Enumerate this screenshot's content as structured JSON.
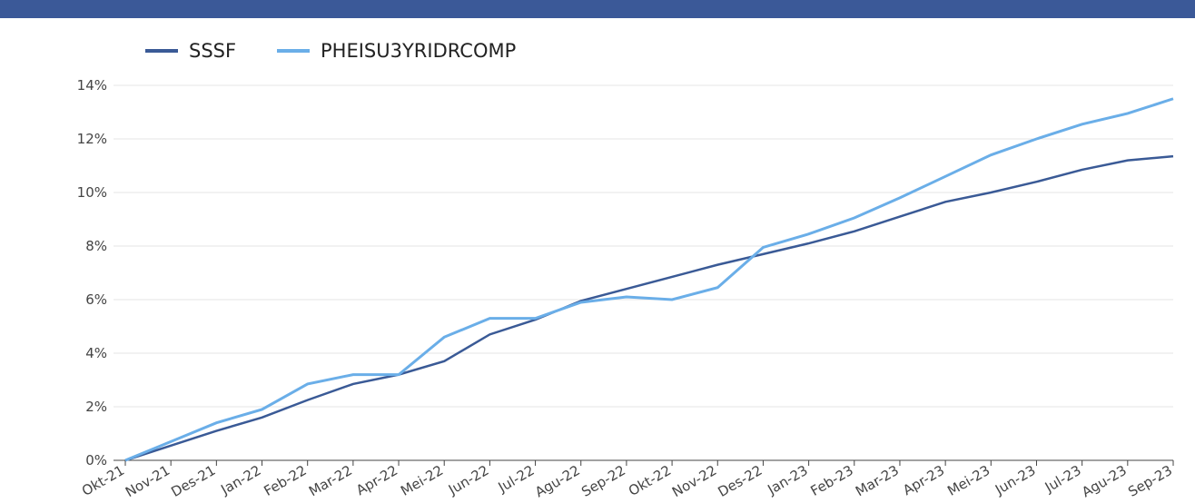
{
  "chart_data": {
    "type": "line",
    "categories": [
      "Okt-21",
      "Nov-21",
      "Des-21",
      "Jan-22",
      "Feb-22",
      "Mar-22",
      "Apr-22",
      "Mei-22",
      "Jun-22",
      "Jul-22",
      "Agu-22",
      "Sep-22",
      "Okt-22",
      "Nov-22",
      "Des-22",
      "Jan-23",
      "Feb-23",
      "Mar-23",
      "Apr-23",
      "Mei-23",
      "Jun-23",
      "Jul-23",
      "Agu-23",
      "Sep-23"
    ],
    "series": [
      {
        "name": "SSSF",
        "color": "#3a5a96",
        "values": [
          0,
          0.55,
          1.1,
          1.6,
          2.25,
          2.85,
          3.2,
          3.7,
          4.7,
          5.25,
          5.95,
          6.4,
          6.85,
          7.3,
          7.7,
          8.1,
          8.55,
          9.1,
          9.65,
          10.0,
          10.4,
          10.85,
          11.2,
          11.35
        ]
      },
      {
        "name": "PHEISU3YRIDRCOMP",
        "color": "#6aaee8",
        "values": [
          0,
          0.7,
          1.4,
          1.9,
          2.85,
          3.2,
          3.2,
          4.6,
          5.3,
          5.3,
          5.9,
          6.1,
          6.0,
          6.45,
          7.95,
          8.45,
          9.05,
          9.8,
          10.6,
          11.4,
          12.0,
          12.55,
          12.95,
          13.5
        ]
      }
    ],
    "ylim": [
      0,
      14
    ],
    "yticks": [
      {
        "value": 0,
        "label": "0%"
      },
      {
        "value": 2,
        "label": "2%"
      },
      {
        "value": 4,
        "label": "4%"
      },
      {
        "value": 6,
        "label": "6%"
      },
      {
        "value": 8,
        "label": "8%"
      },
      {
        "value": 10,
        "label": "10%"
      },
      {
        "value": 12,
        "label": "12%"
      },
      {
        "value": 14,
        "label": "14%"
      }
    ],
    "grid": true
  }
}
